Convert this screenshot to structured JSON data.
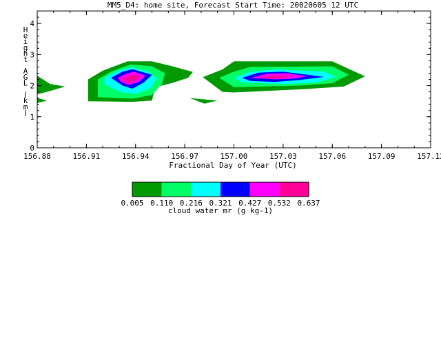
{
  "chart_data": {
    "type": "heatmap",
    "title": "MM5_D4: home site,  Forecast Start Time: 20020605 12 UTC",
    "xlabel": "Fractional Day of Year (UTC)",
    "ylabel_chars": [
      "H",
      "e",
      "i",
      "g",
      "h",
      "t",
      " ",
      "A",
      "G",
      "L",
      " ",
      "(",
      "k",
      "m",
      ")"
    ],
    "xlim": [
      156.88,
      157.12
    ],
    "ylim": [
      0,
      4.4
    ],
    "x_tick_values": [
      156.88,
      156.91,
      156.94,
      156.97,
      157.0,
      157.03,
      157.06,
      157.09,
      157.12
    ],
    "x_tick_labels": [
      "156.88",
      "156.91",
      "156.94",
      "156.97",
      "157.00",
      "157.03",
      "157.06",
      "157.09",
      "157.12"
    ],
    "y_tick_values": [
      0,
      1,
      2,
      3,
      4
    ],
    "y_tick_labels": [
      "0",
      "1",
      "2",
      "3",
      "4"
    ],
    "colorbar": {
      "label": "cloud water mr (g kg-1)",
      "levels": [
        "0.005",
        "0.110",
        "0.216",
        "0.321",
        "0.427",
        "0.532",
        "0.637"
      ],
      "colors": [
        "#009900",
        "#00ff66",
        "#00ffff",
        "#0000ff",
        "#ff00ff",
        "#ff0099"
      ]
    },
    "contour_regions": [
      {
        "level": 0,
        "points": [
          [
            156.88,
            2.32
          ],
          [
            156.888,
            2.05
          ],
          [
            156.897,
            1.97
          ],
          [
            156.888,
            1.83
          ],
          [
            156.88,
            1.72
          ]
        ]
      },
      {
        "level": 0,
        "points": [
          [
            156.88,
            1.6
          ],
          [
            156.886,
            1.52
          ],
          [
            156.88,
            1.44
          ]
        ]
      },
      {
        "level": 0,
        "points": [
          [
            156.911,
            2.2
          ],
          [
            156.92,
            2.48
          ],
          [
            156.935,
            2.78
          ],
          [
            156.95,
            2.78
          ],
          [
            156.962,
            2.63
          ],
          [
            156.975,
            2.44
          ],
          [
            156.972,
            2.25
          ],
          [
            156.962,
            2.08
          ],
          [
            156.952,
            1.95
          ],
          [
            156.95,
            1.52
          ],
          [
            156.938,
            1.48
          ],
          [
            156.911,
            1.5
          ]
        ]
      },
      {
        "level": 0,
        "points": [
          [
            156.973,
            1.6
          ],
          [
            156.982,
            1.42
          ],
          [
            156.99,
            1.52
          ]
        ]
      },
      {
        "level": 0,
        "points": [
          [
            156.981,
            2.27
          ],
          [
            156.993,
            2.52
          ],
          [
            157.0,
            2.78
          ],
          [
            157.06,
            2.78
          ],
          [
            157.08,
            2.3
          ],
          [
            157.067,
            1.97
          ],
          [
            157.04,
            1.88
          ],
          [
            157.0,
            1.78
          ],
          [
            156.993,
            1.8
          ]
        ]
      },
      {
        "level": 1,
        "points": [
          [
            156.917,
            2.2
          ],
          [
            156.925,
            2.45
          ],
          [
            156.937,
            2.68
          ],
          [
            156.95,
            2.62
          ],
          [
            156.958,
            2.4
          ],
          [
            156.956,
            2.05
          ],
          [
            156.95,
            1.7
          ],
          [
            156.938,
            1.58
          ],
          [
            156.917,
            1.63
          ]
        ]
      },
      {
        "level": 1,
        "points": [
          [
            156.991,
            2.25
          ],
          [
            157.0,
            2.45
          ],
          [
            157.01,
            2.6
          ],
          [
            157.06,
            2.62
          ],
          [
            157.07,
            2.35
          ],
          [
            157.06,
            2.08
          ],
          [
            157.04,
            2.0
          ],
          [
            157.0,
            1.95
          ]
        ]
      },
      {
        "level": 2,
        "points": [
          [
            156.921,
            2.25
          ],
          [
            156.93,
            2.5
          ],
          [
            156.938,
            2.58
          ],
          [
            156.948,
            2.45
          ],
          [
            156.953,
            2.23
          ],
          [
            156.949,
            1.92
          ],
          [
            156.94,
            1.73
          ],
          [
            156.93,
            1.8
          ],
          [
            156.921,
            2.05
          ]
        ]
      },
      {
        "level": 2,
        "points": [
          [
            157.0,
            2.25
          ],
          [
            157.01,
            2.45
          ],
          [
            157.025,
            2.52
          ],
          [
            157.055,
            2.45
          ],
          [
            157.062,
            2.28
          ],
          [
            157.05,
            2.1
          ],
          [
            157.03,
            2.05
          ],
          [
            157.005,
            2.1
          ]
        ]
      },
      {
        "level": 3,
        "points": [
          [
            156.925,
            2.25
          ],
          [
            156.932,
            2.45
          ],
          [
            156.938,
            2.53
          ],
          [
            156.95,
            2.35
          ],
          [
            156.945,
            2.1
          ],
          [
            156.938,
            1.9
          ],
          [
            156.932,
            2.0
          ]
        ]
      },
      {
        "level": 3,
        "points": [
          [
            157.005,
            2.25
          ],
          [
            157.015,
            2.42
          ],
          [
            157.03,
            2.45
          ],
          [
            157.055,
            2.28
          ],
          [
            157.04,
            2.18
          ],
          [
            157.025,
            2.12
          ],
          [
            157.01,
            2.15
          ]
        ]
      },
      {
        "level": 4,
        "points": [
          [
            156.929,
            2.25
          ],
          [
            156.934,
            2.38
          ],
          [
            156.939,
            2.45
          ],
          [
            156.946,
            2.32
          ],
          [
            156.942,
            2.12
          ],
          [
            156.936,
            2.02
          ],
          [
            156.931,
            2.12
          ]
        ]
      },
      {
        "level": 4,
        "points": [
          [
            157.01,
            2.25
          ],
          [
            157.02,
            2.38
          ],
          [
            157.032,
            2.4
          ],
          [
            157.045,
            2.3
          ],
          [
            157.035,
            2.22
          ],
          [
            157.025,
            2.2
          ]
        ]
      },
      {
        "level": 5,
        "points": [
          [
            156.932,
            2.22
          ],
          [
            156.936,
            2.32
          ],
          [
            156.94,
            2.36
          ],
          [
            156.943,
            2.28
          ],
          [
            156.94,
            2.14
          ],
          [
            156.935,
            2.1
          ]
        ]
      },
      {
        "level": 5,
        "points": [
          [
            157.015,
            2.25
          ],
          [
            157.025,
            2.33
          ],
          [
            157.035,
            2.32
          ],
          [
            157.03,
            2.26
          ],
          [
            157.022,
            2.22
          ]
        ]
      }
    ]
  }
}
